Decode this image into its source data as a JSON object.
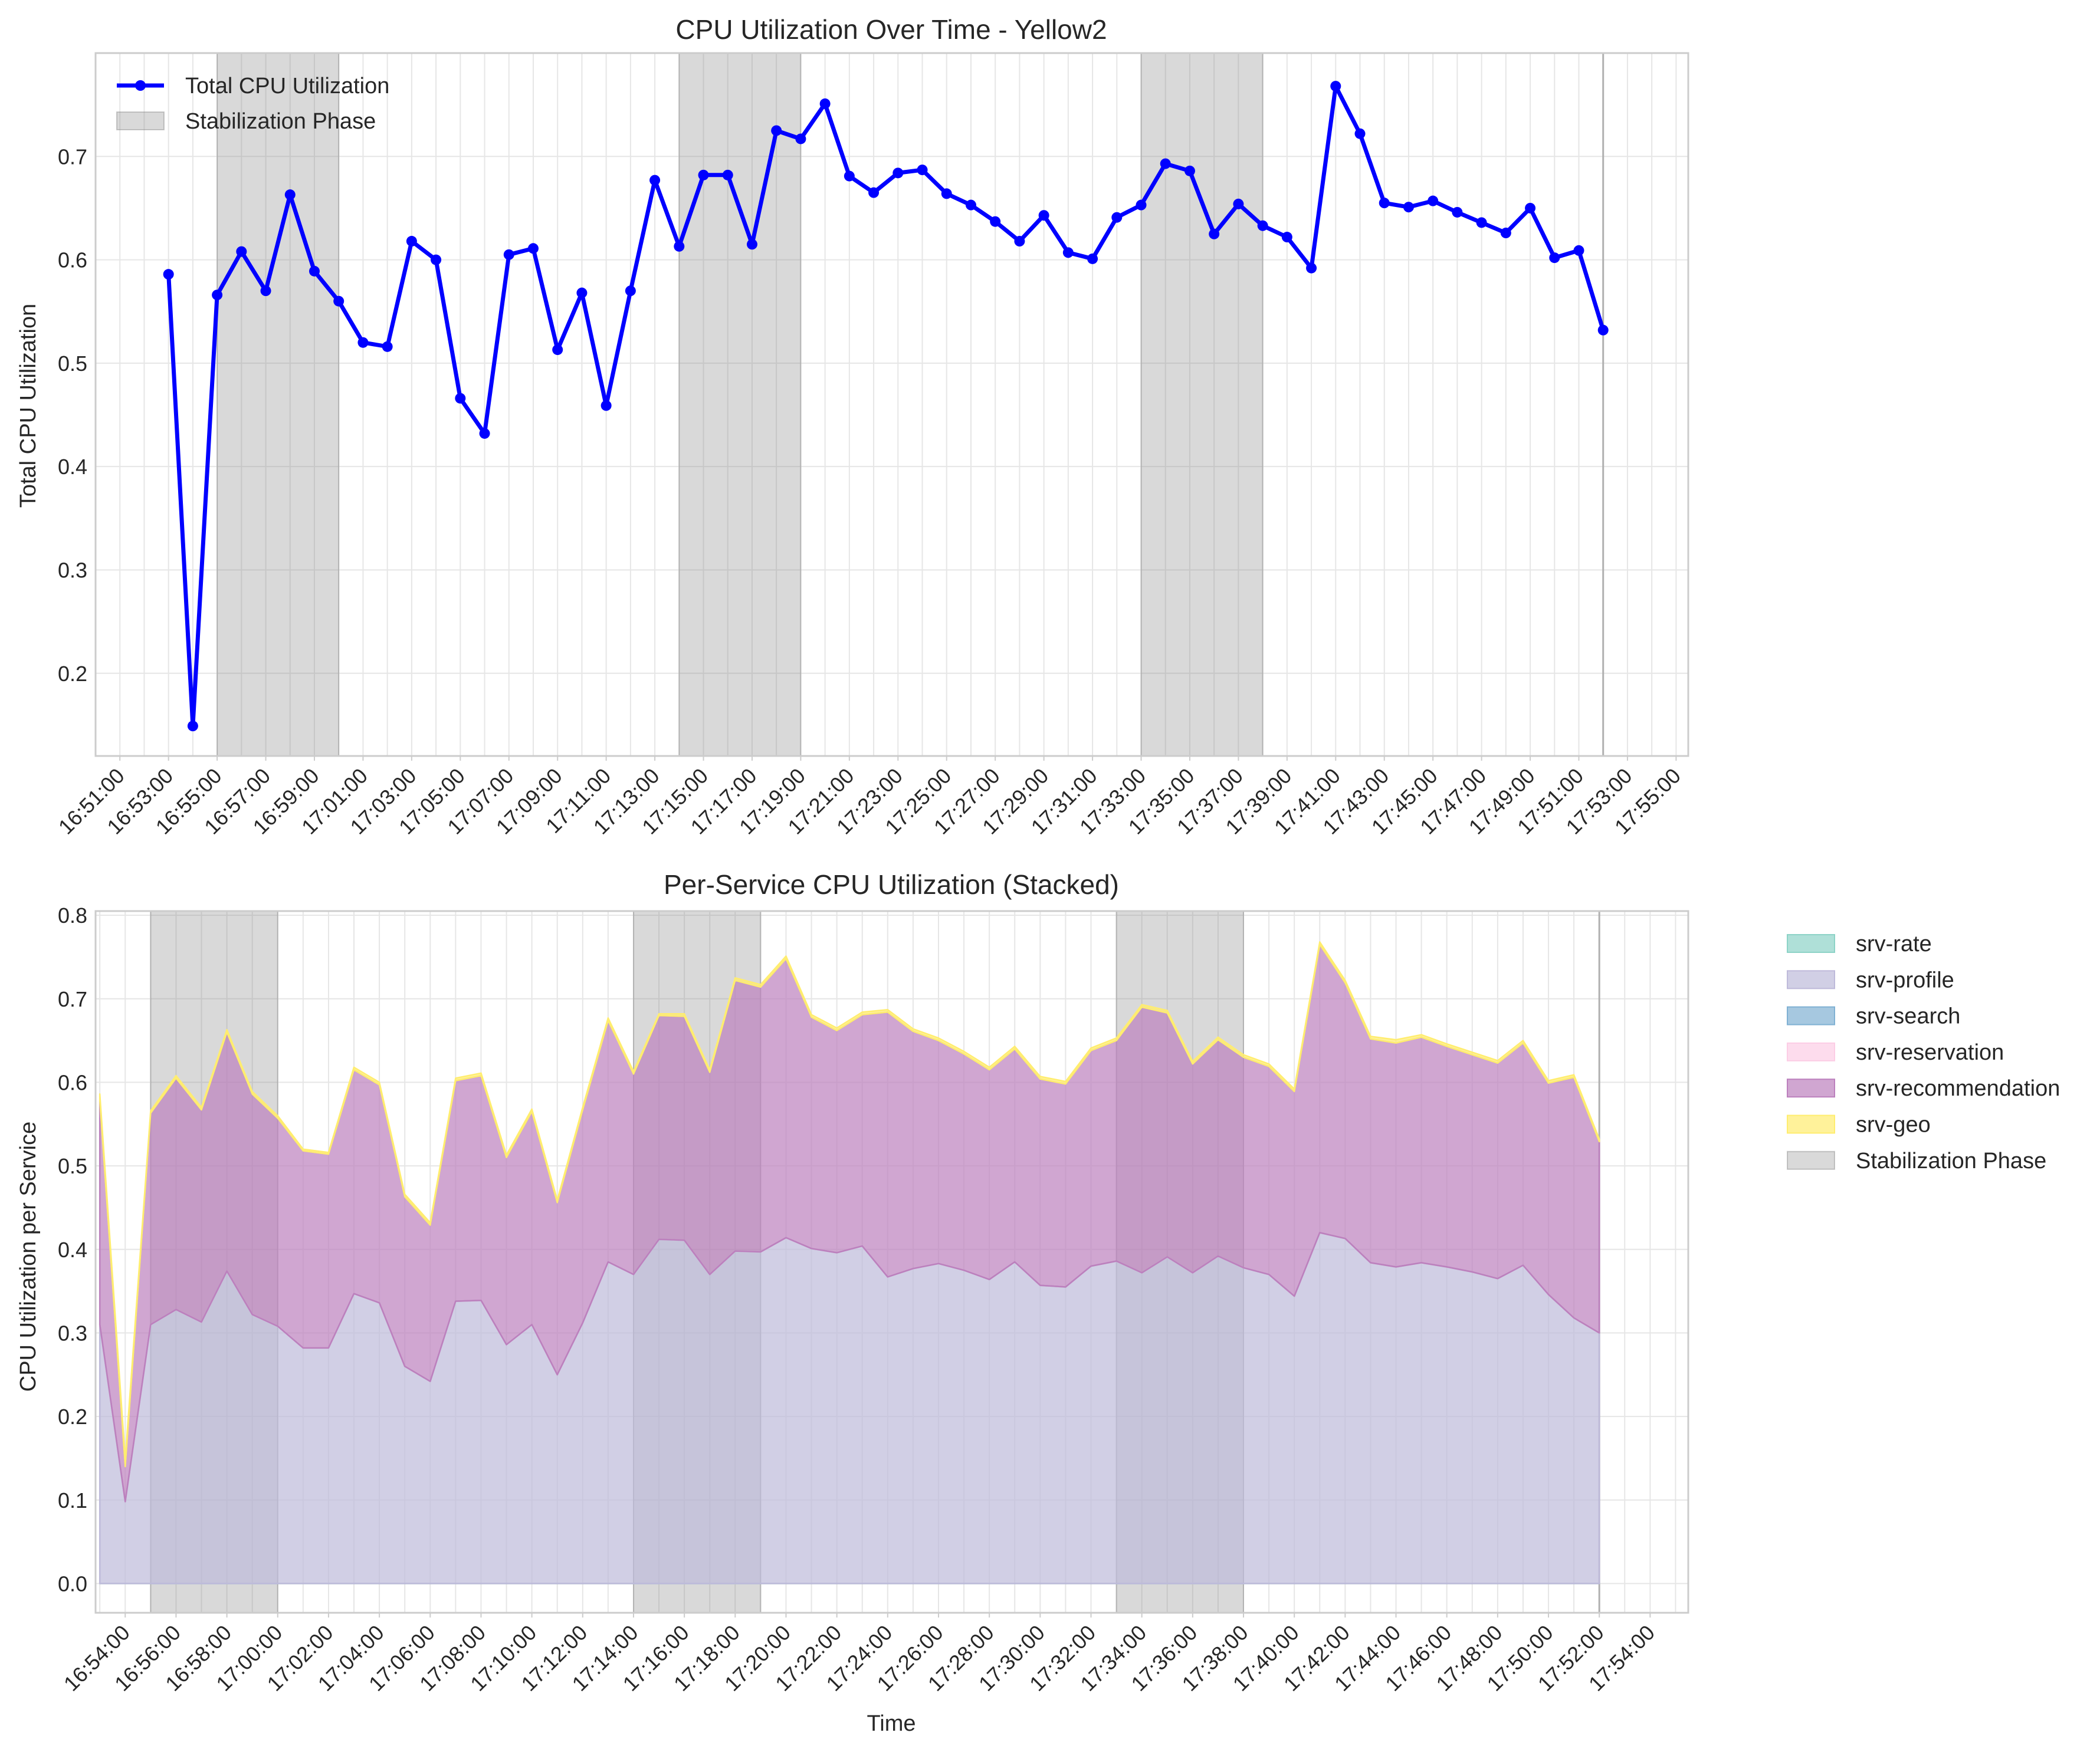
{
  "chart_data": [
    {
      "type": "line",
      "title": "CPU Utilization Over Time - Yellow2",
      "xlabel": "",
      "ylabel": "Total CPU Utilization",
      "x_ticks": [
        "16:51:00",
        "16:53:00",
        "16:55:00",
        "16:57:00",
        "16:59:00",
        "17:01:00",
        "17:03:00",
        "17:05:00",
        "17:07:00",
        "17:09:00",
        "17:11:00",
        "17:13:00",
        "17:15:00",
        "17:17:00",
        "17:19:00",
        "17:21:00",
        "17:23:00",
        "17:25:00",
        "17:27:00",
        "17:29:00",
        "17:31:00",
        "17:33:00",
        "17:35:00",
        "17:37:00",
        "17:39:00",
        "17:41:00",
        "17:43:00",
        "17:45:00",
        "17:47:00",
        "17:49:00",
        "17:51:00",
        "17:53:00",
        "17:55:00"
      ],
      "xlim": [
        "16:50:00",
        "17:55:30"
      ],
      "y_ticks": [
        0.2,
        0.3,
        0.4,
        0.5,
        0.6,
        0.7
      ],
      "ylim": [
        0.12,
        0.8
      ],
      "grid": true,
      "legend_position": "top-left",
      "legend": [
        "Total CPU Utilization",
        "Stabilization Phase"
      ],
      "stabilization_phases": [
        [
          "16:55:00",
          "17:00:00"
        ],
        [
          "17:14:00",
          "17:19:00"
        ],
        [
          "17:33:00",
          "17:38:00"
        ],
        [
          "17:52:00",
          "17:52:00"
        ]
      ],
      "series": [
        {
          "name": "Total CPU Utilization",
          "color": "#0000ff",
          "x": [
            "16:53:00",
            "16:54:00",
            "16:55:00",
            "16:56:00",
            "16:57:00",
            "16:58:00",
            "16:59:00",
            "17:00:00",
            "17:01:00",
            "17:02:00",
            "17:03:00",
            "17:04:00",
            "17:05:00",
            "17:06:00",
            "17:07:00",
            "17:08:00",
            "17:09:00",
            "17:10:00",
            "17:11:00",
            "17:12:00",
            "17:13:00",
            "17:14:00",
            "17:15:00",
            "17:16:00",
            "17:17:00",
            "17:18:00",
            "17:19:00",
            "17:20:00",
            "17:21:00",
            "17:22:00",
            "17:23:00",
            "17:24:00",
            "17:25:00",
            "17:26:00",
            "17:27:00",
            "17:28:00",
            "17:29:00",
            "17:30:00",
            "17:31:00",
            "17:32:00",
            "17:33:00",
            "17:34:00",
            "17:35:00",
            "17:36:00",
            "17:37:00",
            "17:38:00",
            "17:39:00",
            "17:40:00",
            "17:41:00",
            "17:42:00",
            "17:43:00",
            "17:44:00",
            "17:45:00",
            "17:46:00",
            "17:47:00",
            "17:48:00",
            "17:49:00",
            "17:50:00",
            "17:51:00",
            "17:52:00"
          ],
          "y": [
            0.586,
            0.149,
            0.566,
            0.608,
            0.57,
            0.663,
            0.589,
            0.56,
            0.52,
            0.516,
            0.618,
            0.6,
            0.466,
            0.432,
            0.605,
            0.611,
            0.513,
            0.568,
            0.459,
            0.57,
            0.677,
            0.613,
            0.682,
            0.682,
            0.615,
            0.725,
            0.717,
            0.751,
            0.681,
            0.665,
            0.684,
            0.687,
            0.664,
            0.653,
            0.637,
            0.618,
            0.643,
            0.607,
            0.601,
            0.641,
            0.653,
            0.693,
            0.686,
            0.625,
            0.654,
            0.633,
            0.622,
            0.592,
            0.768,
            0.722,
            0.655,
            0.651,
            0.657,
            0.646,
            0.636,
            0.626,
            0.65,
            0.602,
            0.609,
            0.532
          ]
        }
      ]
    },
    {
      "type": "area",
      "stacked": true,
      "title": "Per-Service CPU Utilization (Stacked)",
      "xlabel": "Time",
      "ylabel": "CPU Utilization per Service",
      "x_ticks": [
        "16:54:00",
        "16:56:00",
        "16:58:00",
        "17:00:00",
        "17:02:00",
        "17:04:00",
        "17:06:00",
        "17:08:00",
        "17:10:00",
        "17:12:00",
        "17:14:00",
        "17:16:00",
        "17:18:00",
        "17:20:00",
        "17:22:00",
        "17:24:00",
        "17:26:00",
        "17:28:00",
        "17:30:00",
        "17:32:00",
        "17:34:00",
        "17:36:00",
        "17:38:00",
        "17:40:00",
        "17:42:00",
        "17:44:00",
        "17:46:00",
        "17:48:00",
        "17:50:00",
        "17:52:00",
        "17:54:00"
      ],
      "xlim": [
        "16:52:50",
        "17:55:30"
      ],
      "y_ticks": [
        0.0,
        0.1,
        0.2,
        0.3,
        0.4,
        0.5,
        0.6,
        0.7,
        0.8
      ],
      "ylim": [
        -0.035,
        0.805
      ],
      "grid": true,
      "legend_position": "outside-right",
      "legend": [
        "srv-rate",
        "srv-profile",
        "srv-search",
        "srv-reservation",
        "srv-recommendation",
        "srv-geo",
        "Stabilization Phase"
      ],
      "stabilization_phases": [
        [
          "16:55:00",
          "17:00:00"
        ],
        [
          "17:14:00",
          "17:19:00"
        ],
        [
          "17:33:00",
          "17:38:00"
        ],
        [
          "17:52:00",
          "17:52:00"
        ]
      ],
      "x": [
        "16:53:00",
        "16:54:00",
        "16:55:00",
        "16:56:00",
        "16:57:00",
        "16:58:00",
        "16:59:00",
        "17:00:00",
        "17:01:00",
        "17:02:00",
        "17:03:00",
        "17:04:00",
        "17:05:00",
        "17:06:00",
        "17:07:00",
        "17:08:00",
        "17:09:00",
        "17:10:00",
        "17:11:00",
        "17:12:00",
        "17:13:00",
        "17:14:00",
        "17:15:00",
        "17:16:00",
        "17:17:00",
        "17:18:00",
        "17:19:00",
        "17:20:00",
        "17:21:00",
        "17:22:00",
        "17:23:00",
        "17:24:00",
        "17:25:00",
        "17:26:00",
        "17:27:00",
        "17:28:00",
        "17:29:00",
        "17:30:00",
        "17:31:00",
        "17:32:00",
        "17:33:00",
        "17:34:00",
        "17:35:00",
        "17:36:00",
        "17:37:00",
        "17:38:00",
        "17:39:00",
        "17:40:00",
        "17:41:00",
        "17:42:00",
        "17:43:00",
        "17:44:00",
        "17:45:00",
        "17:46:00",
        "17:47:00",
        "17:48:00",
        "17:49:00",
        "17:50:00",
        "17:51:00",
        "17:52:00"
      ],
      "series": [
        {
          "name": "srv-rate",
          "color": "#8dd3c7",
          "values": [
            0,
            0,
            0,
            0,
            0,
            0,
            0,
            0,
            0,
            0,
            0,
            0,
            0,
            0,
            0,
            0,
            0,
            0,
            0,
            0,
            0,
            0,
            0,
            0,
            0,
            0,
            0,
            0,
            0,
            0,
            0,
            0,
            0,
            0,
            0,
            0,
            0,
            0,
            0,
            0,
            0,
            0,
            0,
            0,
            0,
            0,
            0,
            0,
            0,
            0,
            0,
            0,
            0,
            0,
            0,
            0,
            0,
            0,
            0,
            0
          ]
        },
        {
          "name": "srv-profile",
          "color": "#bebada",
          "values": [
            0.31,
            0.098,
            0.31,
            0.328,
            0.313,
            0.374,
            0.322,
            0.308,
            0.282,
            0.282,
            0.347,
            0.336,
            0.26,
            0.242,
            0.338,
            0.339,
            0.286,
            0.31,
            0.25,
            0.312,
            0.385,
            0.37,
            0.412,
            0.411,
            0.37,
            0.398,
            0.397,
            0.414,
            0.401,
            0.396,
            0.404,
            0.367,
            0.377,
            0.383,
            0.375,
            0.364,
            0.385,
            0.357,
            0.355,
            0.38,
            0.386,
            0.372,
            0.391,
            0.372,
            0.392,
            0.378,
            0.37,
            0.344,
            0.42,
            0.413,
            0.384,
            0.379,
            0.384,
            0.379,
            0.373,
            0.365,
            0.381,
            0.346,
            0.318,
            0.3
          ]
        },
        {
          "name": "srv-search",
          "color": "#80b1d3",
          "values": [
            0,
            0,
            0,
            0,
            0,
            0,
            0,
            0,
            0,
            0,
            0,
            0,
            0,
            0,
            0,
            0,
            0,
            0,
            0,
            0,
            0,
            0,
            0,
            0,
            0,
            0,
            0,
            0,
            0,
            0,
            0,
            0,
            0,
            0,
            0,
            0,
            0,
            0,
            0,
            0,
            0,
            0,
            0,
            0,
            0,
            0,
            0,
            0,
            0,
            0,
            0,
            0,
            0,
            0,
            0,
            0,
            0,
            0,
            0,
            0
          ]
        },
        {
          "name": "srv-reservation",
          "color": "#fccde5",
          "values": [
            0,
            0,
            0,
            0,
            0,
            0,
            0,
            0,
            0,
            0,
            0,
            0,
            0,
            0,
            0,
            0,
            0,
            0,
            0,
            0,
            0,
            0,
            0,
            0,
            0,
            0,
            0,
            0,
            0,
            0,
            0,
            0,
            0,
            0,
            0,
            0,
            0,
            0,
            0,
            0,
            0,
            0,
            0,
            0,
            0,
            0,
            0,
            0,
            0,
            0,
            0,
            0,
            0,
            0,
            0,
            0,
            0,
            0,
            0,
            0
          ]
        },
        {
          "name": "srv-recommendation",
          "color": "#bc80bd",
          "values": [
            0.268,
            0.042,
            0.253,
            0.277,
            0.254,
            0.286,
            0.264,
            0.249,
            0.236,
            0.232,
            0.268,
            0.261,
            0.203,
            0.187,
            0.264,
            0.269,
            0.224,
            0.255,
            0.206,
            0.255,
            0.289,
            0.24,
            0.268,
            0.268,
            0.242,
            0.324,
            0.317,
            0.334,
            0.277,
            0.266,
            0.277,
            0.317,
            0.284,
            0.267,
            0.259,
            0.251,
            0.255,
            0.247,
            0.243,
            0.258,
            0.264,
            0.318,
            0.292,
            0.25,
            0.259,
            0.252,
            0.249,
            0.245,
            0.345,
            0.306,
            0.268,
            0.268,
            0.27,
            0.264,
            0.26,
            0.258,
            0.266,
            0.253,
            0.288,
            0.229
          ]
        },
        {
          "name": "srv-geo",
          "color": "#ffed6f",
          "values": [
            0.008,
            0.009,
            0.003,
            0.003,
            0.003,
            0.003,
            0.003,
            0.003,
            0.002,
            0.002,
            0.003,
            0.003,
            0.003,
            0.003,
            0.003,
            0.003,
            0.003,
            0.003,
            0.003,
            0.003,
            0.003,
            0.003,
            0.002,
            0.003,
            0.003,
            0.003,
            0.003,
            0.003,
            0.003,
            0.003,
            0.003,
            0.003,
            0.003,
            0.003,
            0.003,
            0.003,
            0.003,
            0.003,
            0.003,
            0.003,
            0.003,
            0.003,
            0.003,
            0.003,
            0.003,
            0.003,
            0.003,
            0.003,
            0.003,
            0.003,
            0.003,
            0.004,
            0.003,
            0.003,
            0.003,
            0.003,
            0.003,
            0.003,
            0.003,
            0.003
          ]
        }
      ]
    }
  ]
}
